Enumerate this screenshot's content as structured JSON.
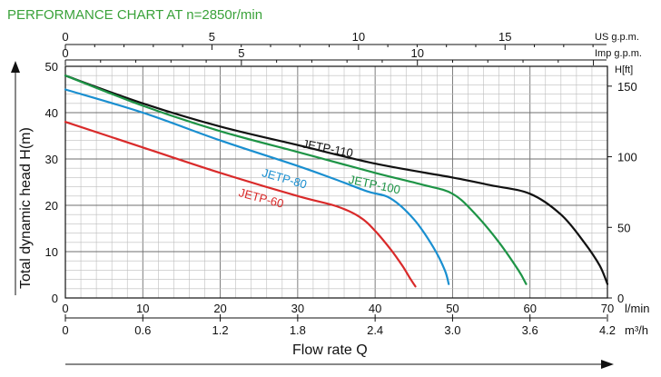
{
  "chart_data": {
    "type": "line",
    "title": "PERFORMANCE CHART AT n=2850r/min",
    "ylabel": "Total dynamic head H(m)",
    "xlabel": "Flow rate Q",
    "ylim": [
      0,
      50
    ],
    "xlim": [
      0,
      70
    ],
    "grid": true,
    "x_units": "l/min",
    "left_axis": {
      "ticks": [
        "0",
        "10",
        "20",
        "30",
        "40",
        "50"
      ]
    },
    "right_axis": {
      "label": "H[ft]",
      "ticks": [
        "0",
        "50",
        "100",
        "150"
      ]
    },
    "bottom_axis": {
      "units": "l/min",
      "ticks": [
        "0",
        "10",
        "20",
        "30",
        "40",
        "50",
        "60",
        "70"
      ]
    },
    "bottom_axis_2": {
      "units": "m³/h",
      "ticks": [
        "0",
        "0.6",
        "1.2",
        "1.8",
        "2.4",
        "3.0",
        "3.6",
        "4.2"
      ]
    },
    "top_axis_1": {
      "units": "US g.p.m.",
      "ticks": [
        "0",
        "5",
        "10",
        "15"
      ]
    },
    "top_axis_2": {
      "units": "Imp g.p.m.",
      "ticks": [
        "0",
        "5",
        "10"
      ]
    },
    "series": [
      {
        "name": "JETP-110",
        "color": "#111111",
        "x": [
          0,
          10,
          20,
          30,
          40,
          50,
          55,
          60,
          64,
          67,
          69,
          70
        ],
        "y": [
          48,
          42,
          37,
          33,
          29,
          26,
          24.3,
          22.5,
          18,
          12,
          7,
          3
        ]
      },
      {
        "name": "JETP-100",
        "color": "#1e9446",
        "x": [
          0,
          10,
          20,
          30,
          40,
          46,
          50,
          53,
          56,
          58.5,
          59.5
        ],
        "y": [
          48,
          41.5,
          36,
          31.5,
          27,
          24.5,
          22.5,
          18,
          12,
          6,
          3
        ]
      },
      {
        "name": "JETP-80",
        "color": "#1a8fd0",
        "x": [
          0,
          10,
          20,
          30,
          35,
          39,
          42,
          45,
          47.5,
          49,
          49.5
        ],
        "y": [
          45,
          40,
          34,
          28.5,
          25.5,
          23,
          21.5,
          17,
          11,
          6,
          3
        ]
      },
      {
        "name": "JETP-60",
        "color": "#d92a2a",
        "x": [
          0,
          10,
          20,
          30,
          35,
          38,
          40,
          42,
          43.5,
          44.6,
          45.2
        ],
        "y": [
          38,
          32.5,
          27,
          22,
          19.8,
          17.5,
          14.5,
          10.5,
          7,
          4,
          2.5
        ]
      }
    ]
  }
}
